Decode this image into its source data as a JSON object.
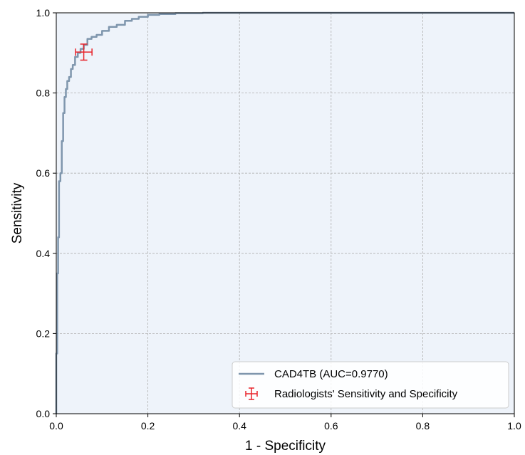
{
  "chart_data": {
    "type": "line",
    "title": "",
    "xlabel": "1 - Specificity",
    "ylabel": "Sensitivity",
    "xlim": [
      0,
      1
    ],
    "ylim": [
      0,
      1
    ],
    "grid": true,
    "legend_position": "lower-right",
    "background_color": "#eef3fa",
    "x_ticks": [
      {
        "value": 0.0,
        "label": "0.0"
      },
      {
        "value": 0.2,
        "label": "0.2"
      },
      {
        "value": 0.4,
        "label": "0.4"
      },
      {
        "value": 0.6,
        "label": "0.6"
      },
      {
        "value": 0.8,
        "label": "0.8"
      },
      {
        "value": 1.0,
        "label": "1.0"
      }
    ],
    "y_ticks": [
      {
        "value": 0.0,
        "label": "0.0"
      },
      {
        "value": 0.2,
        "label": "0.2"
      },
      {
        "value": 0.4,
        "label": "0.4"
      },
      {
        "value": 0.6,
        "label": "0.6"
      },
      {
        "value": 0.8,
        "label": "0.8"
      },
      {
        "value": 1.0,
        "label": "1.0"
      }
    ],
    "series": [
      {
        "name": "CAD4TB (AUC=0.9770)",
        "kind": "roc-step",
        "color": "#7f96ad",
        "x": [
          0.0,
          0.0,
          0.002,
          0.002,
          0.004,
          0.004,
          0.006,
          0.006,
          0.009,
          0.009,
          0.012,
          0.012,
          0.015,
          0.015,
          0.018,
          0.018,
          0.021,
          0.021,
          0.024,
          0.024,
          0.028,
          0.028,
          0.032,
          0.032,
          0.036,
          0.036,
          0.041,
          0.041,
          0.047,
          0.047,
          0.053,
          0.053,
          0.06,
          0.06,
          0.068,
          0.068,
          0.077,
          0.077,
          0.088,
          0.088,
          0.1,
          0.1,
          0.115,
          0.115,
          0.132,
          0.132,
          0.15,
          0.15,
          0.165,
          0.165,
          0.18,
          0.18,
          0.2,
          0.2,
          0.225,
          0.225,
          0.26,
          0.26,
          0.32,
          0.32,
          0.41,
          1.0
        ],
        "y": [
          0.0,
          0.15,
          0.15,
          0.35,
          0.35,
          0.44,
          0.44,
          0.58,
          0.58,
          0.6,
          0.6,
          0.68,
          0.68,
          0.75,
          0.75,
          0.79,
          0.79,
          0.81,
          0.81,
          0.83,
          0.83,
          0.84,
          0.84,
          0.86,
          0.86,
          0.87,
          0.87,
          0.89,
          0.89,
          0.9,
          0.9,
          0.91,
          0.91,
          0.92,
          0.92,
          0.935,
          0.935,
          0.94,
          0.94,
          0.945,
          0.945,
          0.955,
          0.955,
          0.965,
          0.965,
          0.97,
          0.97,
          0.98,
          0.98,
          0.985,
          0.985,
          0.99,
          0.99,
          0.995,
          0.995,
          0.997,
          0.997,
          0.999,
          0.999,
          1.0,
          1.0,
          1.0
        ]
      }
    ],
    "point_series": [
      {
        "name": "Radiologists' Sensitivity and Specificity",
        "color": "#e8232a",
        "x": 0.06,
        "y": 0.902,
        "x_err": 0.018,
        "y_err": 0.02
      }
    ]
  }
}
